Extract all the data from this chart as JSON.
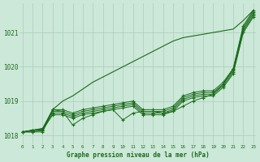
{
  "x": [
    0,
    1,
    2,
    3,
    4,
    5,
    6,
    7,
    8,
    9,
    10,
    11,
    12,
    13,
    14,
    15,
    16,
    17,
    18,
    19,
    20,
    21,
    22,
    23
  ],
  "series": [
    [
      1018.1,
      1018.15,
      1018.15,
      1018.75,
      1018.75,
      1018.65,
      1018.75,
      1018.8,
      1018.85,
      1018.9,
      1018.95,
      1019.0,
      1018.75,
      1018.75,
      1018.75,
      1018.85,
      1019.15,
      1019.25,
      1019.3,
      1019.3,
      1019.55,
      1019.95,
      1021.15,
      1021.6
    ],
    [
      1018.1,
      1018.15,
      1018.2,
      1018.7,
      1018.7,
      1018.6,
      1018.7,
      1018.75,
      1018.8,
      1018.85,
      1018.9,
      1018.95,
      1018.7,
      1018.7,
      1018.7,
      1018.8,
      1019.1,
      1019.2,
      1019.25,
      1019.25,
      1019.5,
      1019.9,
      1021.1,
      1021.55
    ],
    [
      1018.1,
      1018.15,
      1018.15,
      1018.65,
      1018.65,
      1018.55,
      1018.65,
      1018.7,
      1018.75,
      1018.8,
      1018.85,
      1018.9,
      1018.65,
      1018.65,
      1018.65,
      1018.75,
      1019.05,
      1019.15,
      1019.2,
      1019.2,
      1019.45,
      1019.85,
      1021.05,
      1021.5
    ],
    [
      1018.1,
      1018.1,
      1018.15,
      1018.6,
      1018.6,
      1018.5,
      1018.6,
      1018.65,
      1018.7,
      1018.75,
      1018.8,
      1018.85,
      1018.6,
      1018.6,
      1018.6,
      1018.7,
      1019.0,
      1019.1,
      1019.15,
      1019.15,
      1019.4,
      1019.8,
      1021.0,
      1021.45
    ],
    [
      1018.1,
      1018.1,
      1018.1,
      1018.75,
      1018.7,
      1018.3,
      1018.5,
      1018.6,
      1018.7,
      1018.75,
      1018.45,
      1018.65,
      1018.7,
      1018.7,
      1018.65,
      1018.7,
      1018.85,
      1019.0,
      1019.1,
      1019.2,
      1019.5,
      1019.95,
      1021.2,
      1021.65
    ]
  ],
  "top_series": [
    1018.1,
    1018.15,
    1018.2,
    1018.75,
    1019.0,
    1019.15,
    1019.35,
    1019.55,
    1019.7,
    1019.85,
    1020.0,
    1020.15,
    1020.3,
    1020.45,
    1020.6,
    1020.75,
    1020.85,
    1020.9,
    1020.95,
    1021.0,
    1021.05,
    1021.1,
    1021.35,
    1021.65
  ],
  "line_color": "#1a6b1a",
  "bg_color": "#cce8d8",
  "grid_color": "#aaccbb",
  "text_color": "#1a6b1a",
  "xlabel": "Graphe pression niveau de la mer (hPa)",
  "ylim_min": 1017.75,
  "ylim_max": 1021.85,
  "yticks": [
    1018,
    1019,
    1020,
    1021
  ],
  "xticks": [
    0,
    1,
    2,
    3,
    4,
    5,
    6,
    7,
    8,
    9,
    10,
    11,
    12,
    13,
    14,
    15,
    16,
    17,
    18,
    19,
    20,
    21,
    22,
    23
  ]
}
